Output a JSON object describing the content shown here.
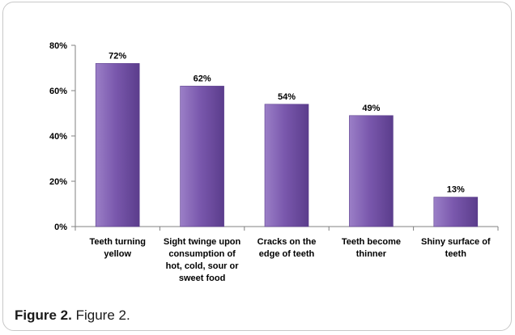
{
  "chart_data": {
    "type": "bar",
    "categories": [
      [
        "Teeth turning",
        "yellow"
      ],
      [
        "Sight twinge upon",
        "consumption of",
        "hot, cold, sour or",
        "sweet food"
      ],
      [
        "Cracks on the",
        "edge of teeth"
      ],
      [
        "Teeth become",
        "thinner"
      ],
      [
        "Shiny surface of",
        "teeth"
      ]
    ],
    "values": [
      72,
      62,
      54,
      49,
      13
    ],
    "data_labels": [
      "72%",
      "62%",
      "54%",
      "49%",
      "13%"
    ],
    "y_ticks": [
      "0%",
      "20%",
      "40%",
      "60%",
      "80%"
    ],
    "ylim": [
      0,
      80
    ],
    "grid": false,
    "legend": "none",
    "title": "",
    "xlabel": "",
    "ylabel": "",
    "colors": {
      "bar_light": "#9b7fc7",
      "bar_mid": "#7a58ad",
      "bar_dark": "#5b3d8c",
      "axis": "#808080",
      "text": "#000000"
    }
  },
  "caption": {
    "label": "Figure 2.",
    "text": "Figure 2."
  }
}
